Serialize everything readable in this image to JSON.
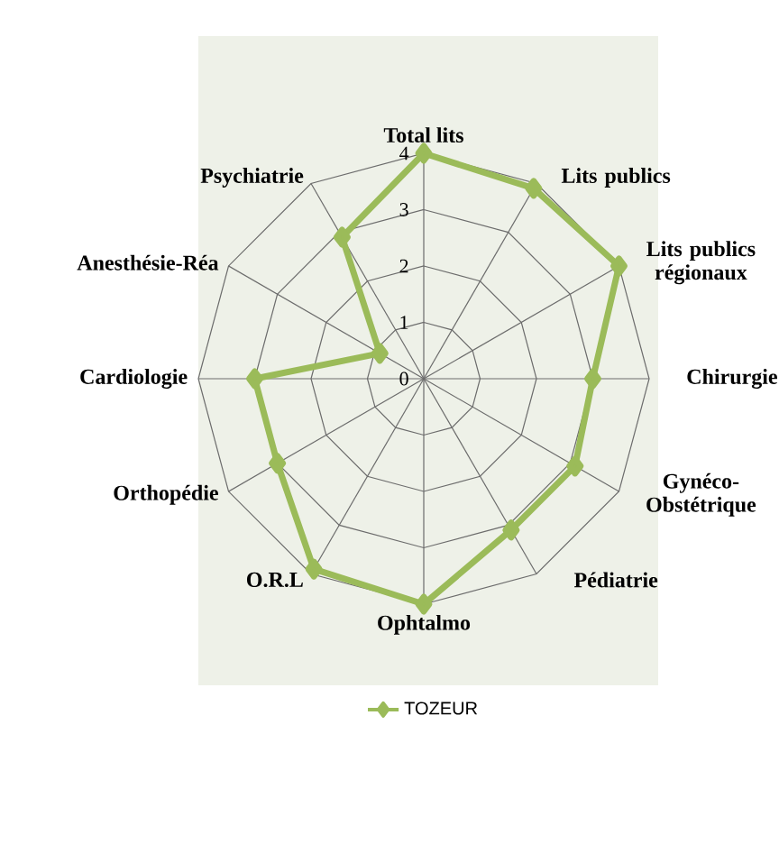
{
  "chart_data": {
    "type": "radar",
    "categories": [
      "Total lits",
      "Lits publics",
      "Lits publics régionaux",
      "Chirurgie",
      "Gynéco-Obstétrique",
      "Pédiatrie",
      "Ophtalmo",
      "O.R.L",
      "Orthopédie",
      "Cardiologie",
      "Anesthésie-Réa",
      "Psychiatrie"
    ],
    "series": [
      {
        "name": "TOZEUR",
        "color": "#9bbb59",
        "values": [
          4.0,
          3.9,
          4.0,
          3.0,
          3.1,
          3.1,
          4.0,
          3.9,
          3.0,
          3.0,
          0.9,
          2.9
        ]
      }
    ],
    "ylim": [
      0,
      4
    ],
    "yticks": [
      0,
      1,
      2,
      3,
      4
    ],
    "grid": true,
    "legend": "bottom",
    "marker": "diamond",
    "line_style": "solid"
  }
}
